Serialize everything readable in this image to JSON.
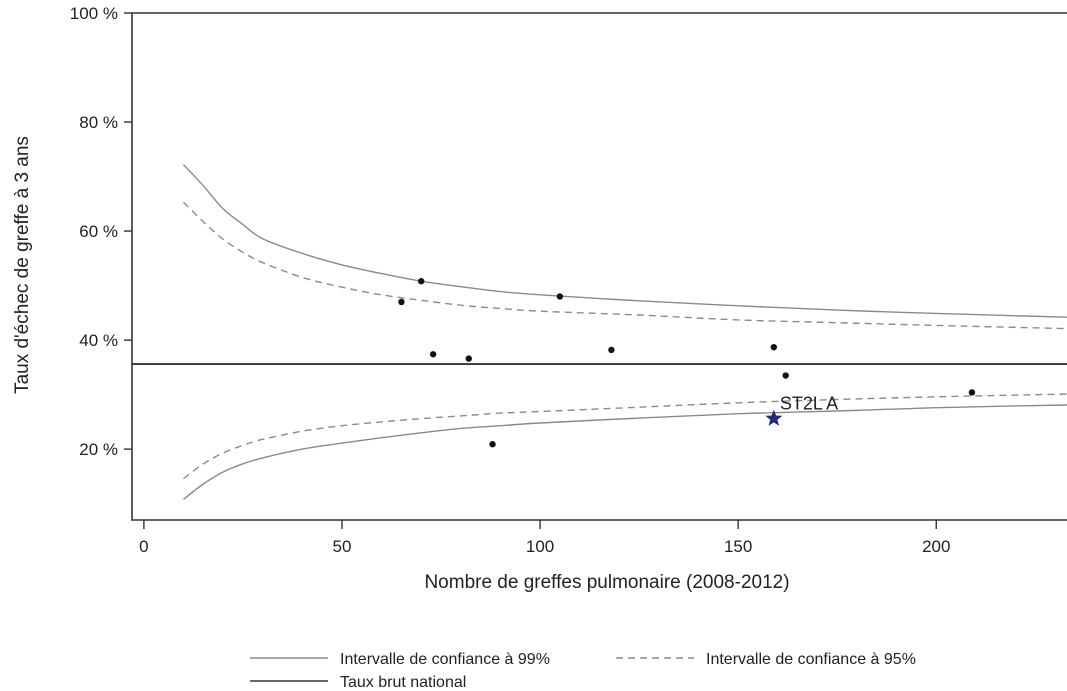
{
  "chart_data": {
    "type": "scatter",
    "xlabel": "Nombre de greffes pulmonaire (2008-2012)",
    "ylabel": "Taux d'échec de greffe à 3 ans",
    "xlim": [
      -3,
      233
    ],
    "ylim": [
      7,
      100
    ],
    "xticks": [
      0,
      50,
      100,
      150,
      200
    ],
    "yticks": [
      20,
      40,
      60,
      80,
      100
    ],
    "ytick_suffix": " %",
    "grid": false,
    "legend_position": "bottom",
    "national_rate": 35.6,
    "points": [
      {
        "x": 65,
        "y": 47.0
      },
      {
        "x": 70,
        "y": 50.8
      },
      {
        "x": 73,
        "y": 37.4
      },
      {
        "x": 82,
        "y": 36.6
      },
      {
        "x": 88,
        "y": 20.9
      },
      {
        "x": 105,
        "y": 48.0
      },
      {
        "x": 118,
        "y": 38.2
      },
      {
        "x": 159,
        "y": 38.7
      },
      {
        "x": 162,
        "y": 33.5
      },
      {
        "x": 209,
        "y": 30.4
      }
    ],
    "highlight": {
      "label": "ST2L A",
      "x": 159,
      "y": 25.6,
      "color": "#1f2a80"
    },
    "ci99_upper": [
      [
        10,
        72.2
      ],
      [
        15,
        68.3
      ],
      [
        20,
        64.1
      ],
      [
        25,
        61.2
      ],
      [
        30,
        58.6
      ],
      [
        40,
        55.9
      ],
      [
        50,
        53.8
      ],
      [
        60,
        52.2
      ],
      [
        70,
        50.8
      ],
      [
        80,
        49.8
      ],
      [
        90,
        48.9
      ],
      [
        100,
        48.3
      ],
      [
        125,
        47.2
      ],
      [
        150,
        46.3
      ],
      [
        175,
        45.5
      ],
      [
        200,
        44.9
      ],
      [
        233,
        44.2
      ]
    ],
    "ci95_upper": [
      [
        10,
        65.3
      ],
      [
        15,
        61.7
      ],
      [
        20,
        58.5
      ],
      [
        25,
        56.1
      ],
      [
        30,
        54.2
      ],
      [
        40,
        51.5
      ],
      [
        50,
        49.7
      ],
      [
        60,
        48.3
      ],
      [
        70,
        47.3
      ],
      [
        80,
        46.4
      ],
      [
        90,
        45.8
      ],
      [
        100,
        45.3
      ],
      [
        125,
        44.6
      ],
      [
        150,
        43.7
      ],
      [
        175,
        43.2
      ],
      [
        200,
        42.7
      ],
      [
        233,
        42.1
      ]
    ],
    "ci95_lower": [
      [
        10,
        14.6
      ],
      [
        15,
        17.3
      ],
      [
        20,
        19.3
      ],
      [
        25,
        20.7
      ],
      [
        30,
        21.8
      ],
      [
        40,
        23.3
      ],
      [
        50,
        24.3
      ],
      [
        60,
        25.0
      ],
      [
        70,
        25.6
      ],
      [
        80,
        26.1
      ],
      [
        90,
        26.6
      ],
      [
        100,
        26.9
      ],
      [
        125,
        27.7
      ],
      [
        150,
        28.5
      ],
      [
        175,
        29.1
      ],
      [
        200,
        29.6
      ],
      [
        233,
        30.1
      ]
    ],
    "ci99_lower": [
      [
        10,
        10.8
      ],
      [
        15,
        13.6
      ],
      [
        20,
        15.8
      ],
      [
        25,
        17.3
      ],
      [
        30,
        18.4
      ],
      [
        40,
        20.0
      ],
      [
        50,
        21.1
      ],
      [
        60,
        22.1
      ],
      [
        70,
        23.0
      ],
      [
        80,
        23.8
      ],
      [
        90,
        24.3
      ],
      [
        100,
        24.8
      ],
      [
        125,
        25.7
      ],
      [
        150,
        26.5
      ],
      [
        175,
        27.0
      ],
      [
        200,
        27.6
      ],
      [
        233,
        28.1
      ]
    ],
    "legend": {
      "ci99": "Intervalle de confiance à 99%",
      "ci95": "Intervalle de confiance à 95%",
      "national": "Taux brut national"
    }
  }
}
